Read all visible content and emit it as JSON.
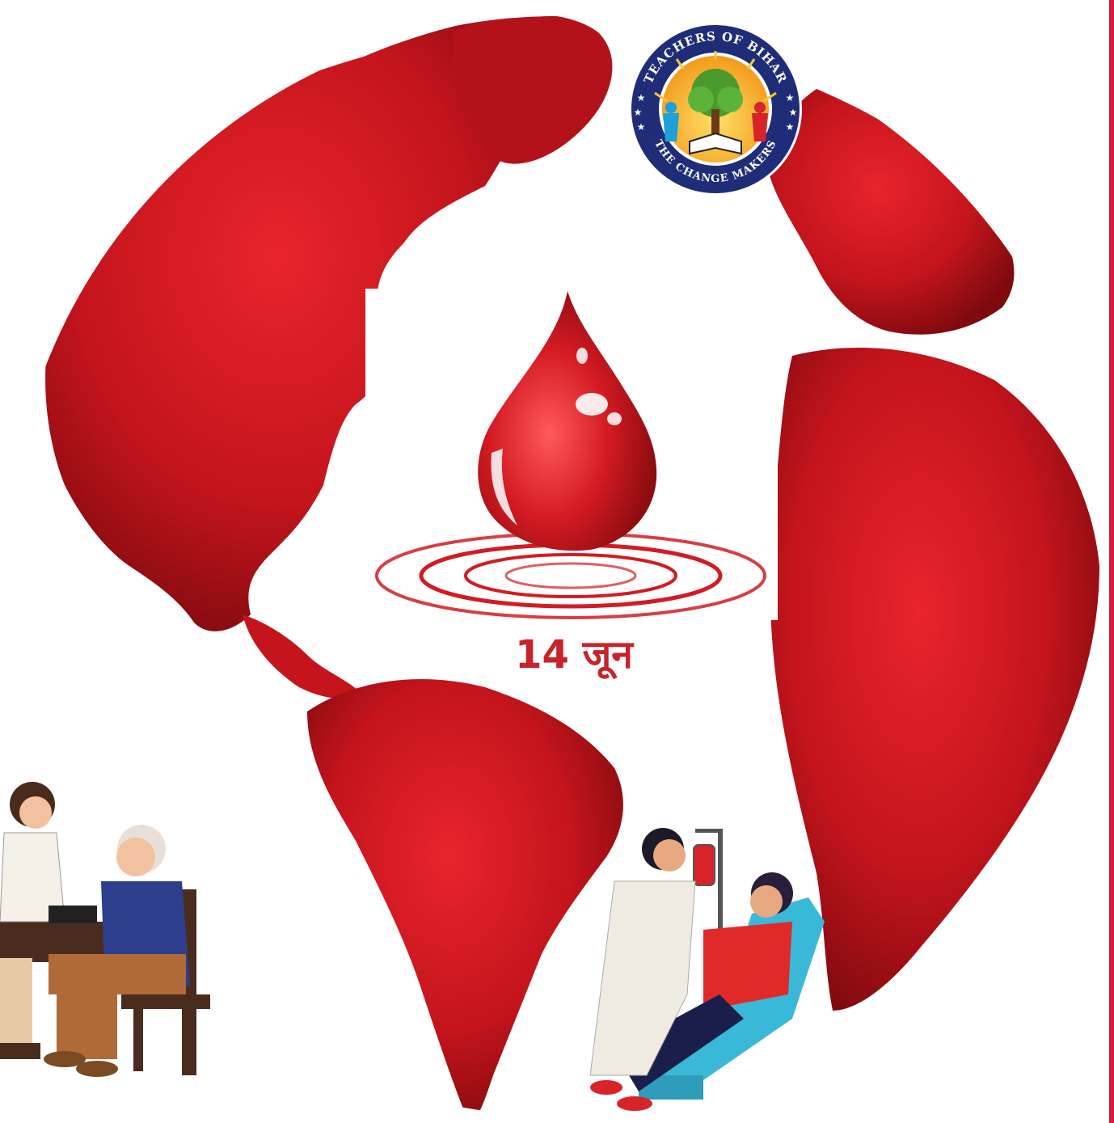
{
  "date_text": "14 जून",
  "logo": {
    "top_text": "TEACHERS OF BIHAR",
    "bottom_text": "THE CHANGE MAKERS"
  },
  "colors": {
    "globe_red": "#c4141c",
    "globe_dark": "#7e0a0e",
    "drop_red": "#d41a22",
    "date_text": "#c8222a",
    "logo_ring": "#1f2c78",
    "right_border": "#d21c3c"
  },
  "icons": [
    "globe-icon",
    "blood-drop-icon",
    "logo-badge",
    "doctor-patient-illustration",
    "blood-donation-illustration"
  ]
}
